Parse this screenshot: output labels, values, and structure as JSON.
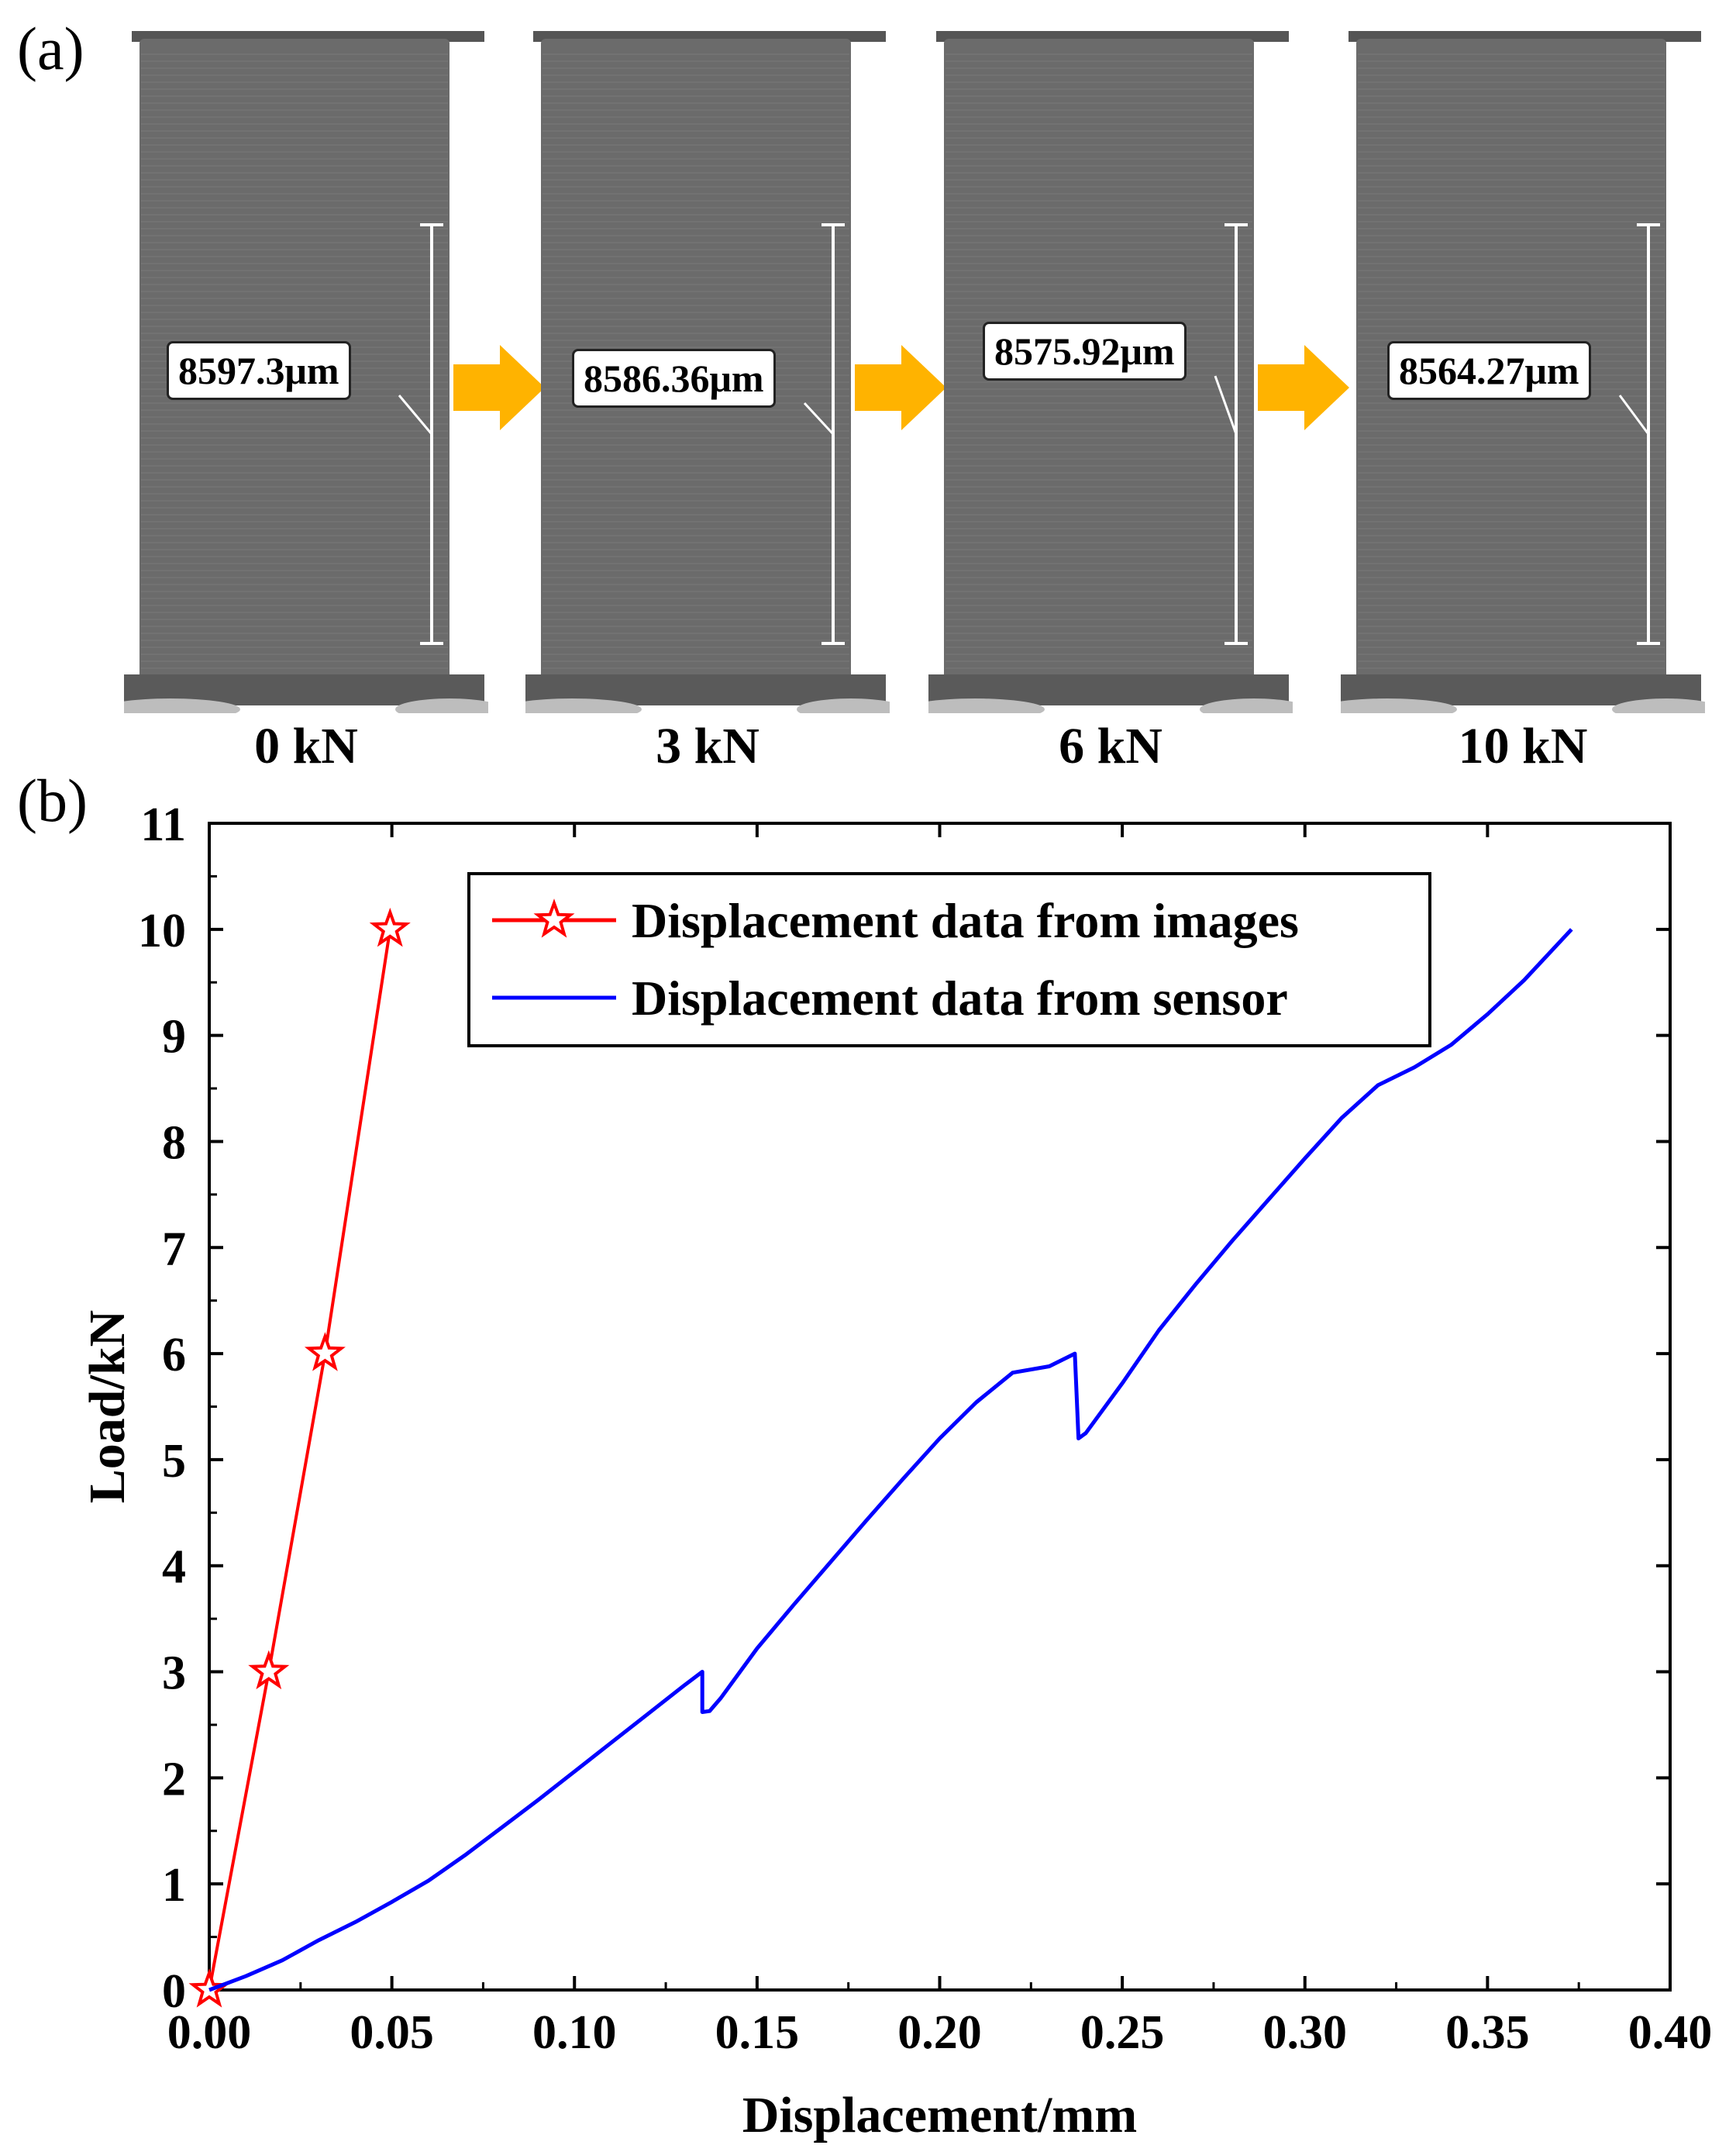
{
  "figure": {
    "panel_a_label": "(a)",
    "panel_b_label": "(b)",
    "specimens": [
      {
        "load": "0 kN",
        "measurement": "8597.3μm"
      },
      {
        "load": "3 kN",
        "measurement": "8586.36μm"
      },
      {
        "load": "6 kN",
        "measurement": "8575.92μm"
      },
      {
        "load": "10 kN",
        "measurement": "8564.27μm"
      }
    ],
    "arrow_color": "#FFB300",
    "specimen_color": "#6b6b6b"
  },
  "chart_data": {
    "type": "line",
    "title": "",
    "xlabel": "Displacement/mm",
    "ylabel": "Load/kN",
    "xlim": [
      0,
      0.4
    ],
    "ylim": [
      0,
      11
    ],
    "x_ticks": [
      "0.00",
      "0.05",
      "0.10",
      "0.15",
      "0.20",
      "0.25",
      "0.30",
      "0.35",
      "0.40"
    ],
    "y_ticks": [
      "0",
      "1",
      "2",
      "3",
      "4",
      "5",
      "6",
      "7",
      "8",
      "9",
      "10",
      "11"
    ],
    "legend_position": "top-center",
    "series": [
      {
        "name": "Displacement data from images",
        "color": "#ff0000",
        "marker": "star",
        "x": [
          0,
          0.0163,
          0.0317,
          0.0495
        ],
        "y": [
          0,
          3,
          6,
          10
        ]
      },
      {
        "name": "Displacement data from sensor",
        "color": "#0000ff",
        "marker": "none",
        "x": [
          0,
          0.01,
          0.02,
          0.03,
          0.04,
          0.05,
          0.06,
          0.07,
          0.08,
          0.09,
          0.1,
          0.11,
          0.12,
          0.13,
          0.135,
          0.135,
          0.137,
          0.14,
          0.15,
          0.16,
          0.17,
          0.18,
          0.19,
          0.2,
          0.21,
          0.22,
          0.23,
          0.237,
          0.238,
          0.24,
          0.25,
          0.26,
          0.27,
          0.28,
          0.29,
          0.3,
          0.31,
          0.32,
          0.33,
          0.34,
          0.35,
          0.36,
          0.373
        ],
        "y": [
          0,
          0.13,
          0.28,
          0.47,
          0.64,
          0.83,
          1.03,
          1.27,
          1.53,
          1.79,
          2.06,
          2.33,
          2.6,
          2.87,
          3.0,
          2.62,
          2.63,
          2.75,
          3.22,
          3.63,
          4.03,
          4.43,
          4.82,
          5.2,
          5.54,
          5.82,
          5.88,
          6.0,
          5.2,
          5.25,
          5.72,
          6.22,
          6.65,
          7.06,
          7.45,
          7.84,
          8.22,
          8.53,
          8.7,
          8.91,
          9.2,
          9.52,
          10.0
        ]
      }
    ]
  }
}
